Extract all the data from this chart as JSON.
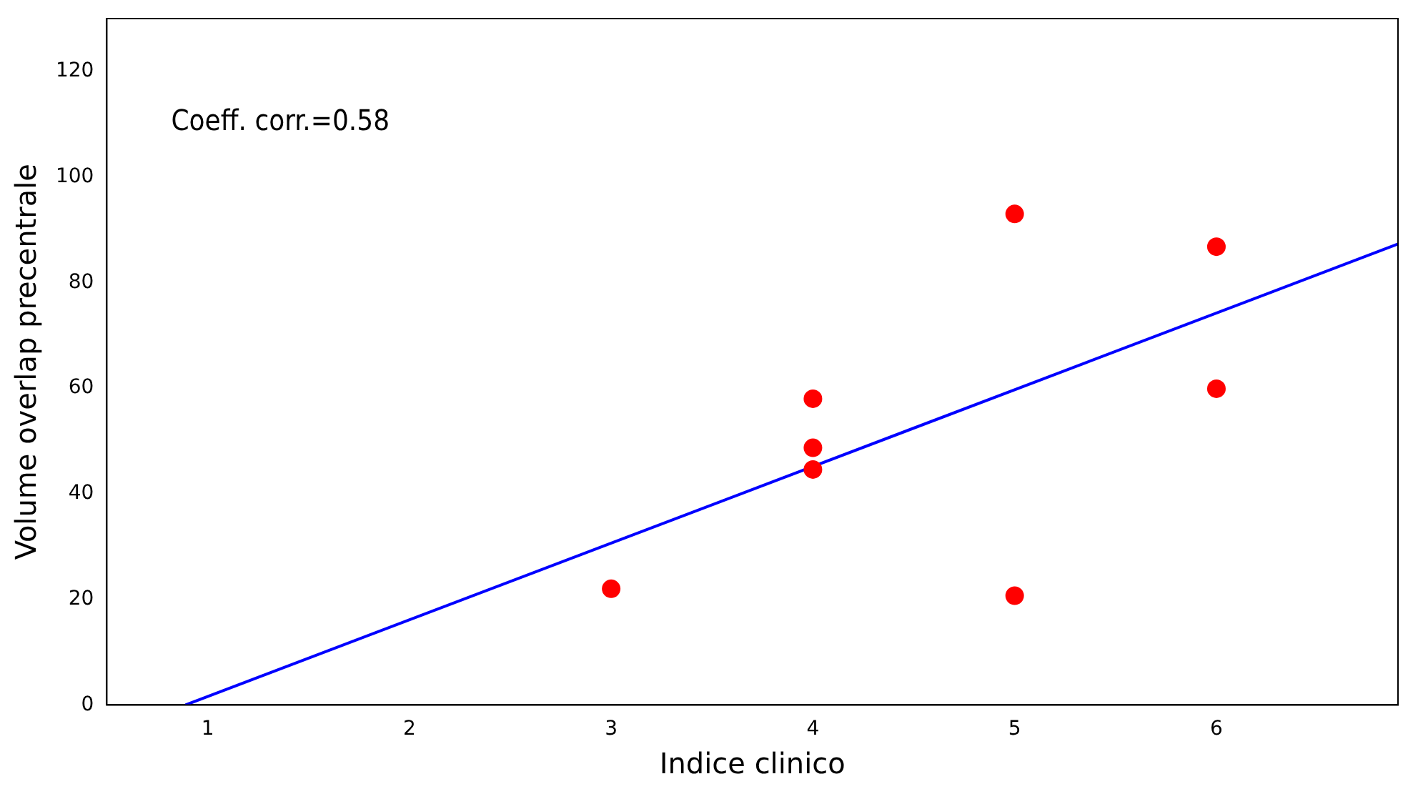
{
  "chart_data": {
    "type": "scatter",
    "xlabel": "Indice clinico",
    "ylabel": "Volume overlap precentrale",
    "annotations": [
      "Coeff. corr.=0.58"
    ],
    "series": [
      {
        "color": "#ff0000",
        "marker": "circle",
        "x": [
          3,
          4,
          4,
          4,
          5,
          5,
          6,
          6
        ],
        "values": [
          22,
          58,
          48.7,
          44.6,
          93,
          20.7,
          86.8,
          59.9
        ]
      },
      {
        "type": "line",
        "color": "#0000ff",
        "marker": "none",
        "line_style": "solid",
        "x": [
          0.89,
          6.9
        ],
        "values": [
          0,
          87.3
        ]
      }
    ],
    "xlim": [
      0.5,
      6.9
    ],
    "xticks": [
      1,
      2,
      3,
      4,
      5,
      6
    ],
    "ylim": [
      0,
      130
    ],
    "yticks": [
      0,
      20,
      40,
      60,
      80,
      100,
      120
    ],
    "grid": false,
    "legend": false
  }
}
